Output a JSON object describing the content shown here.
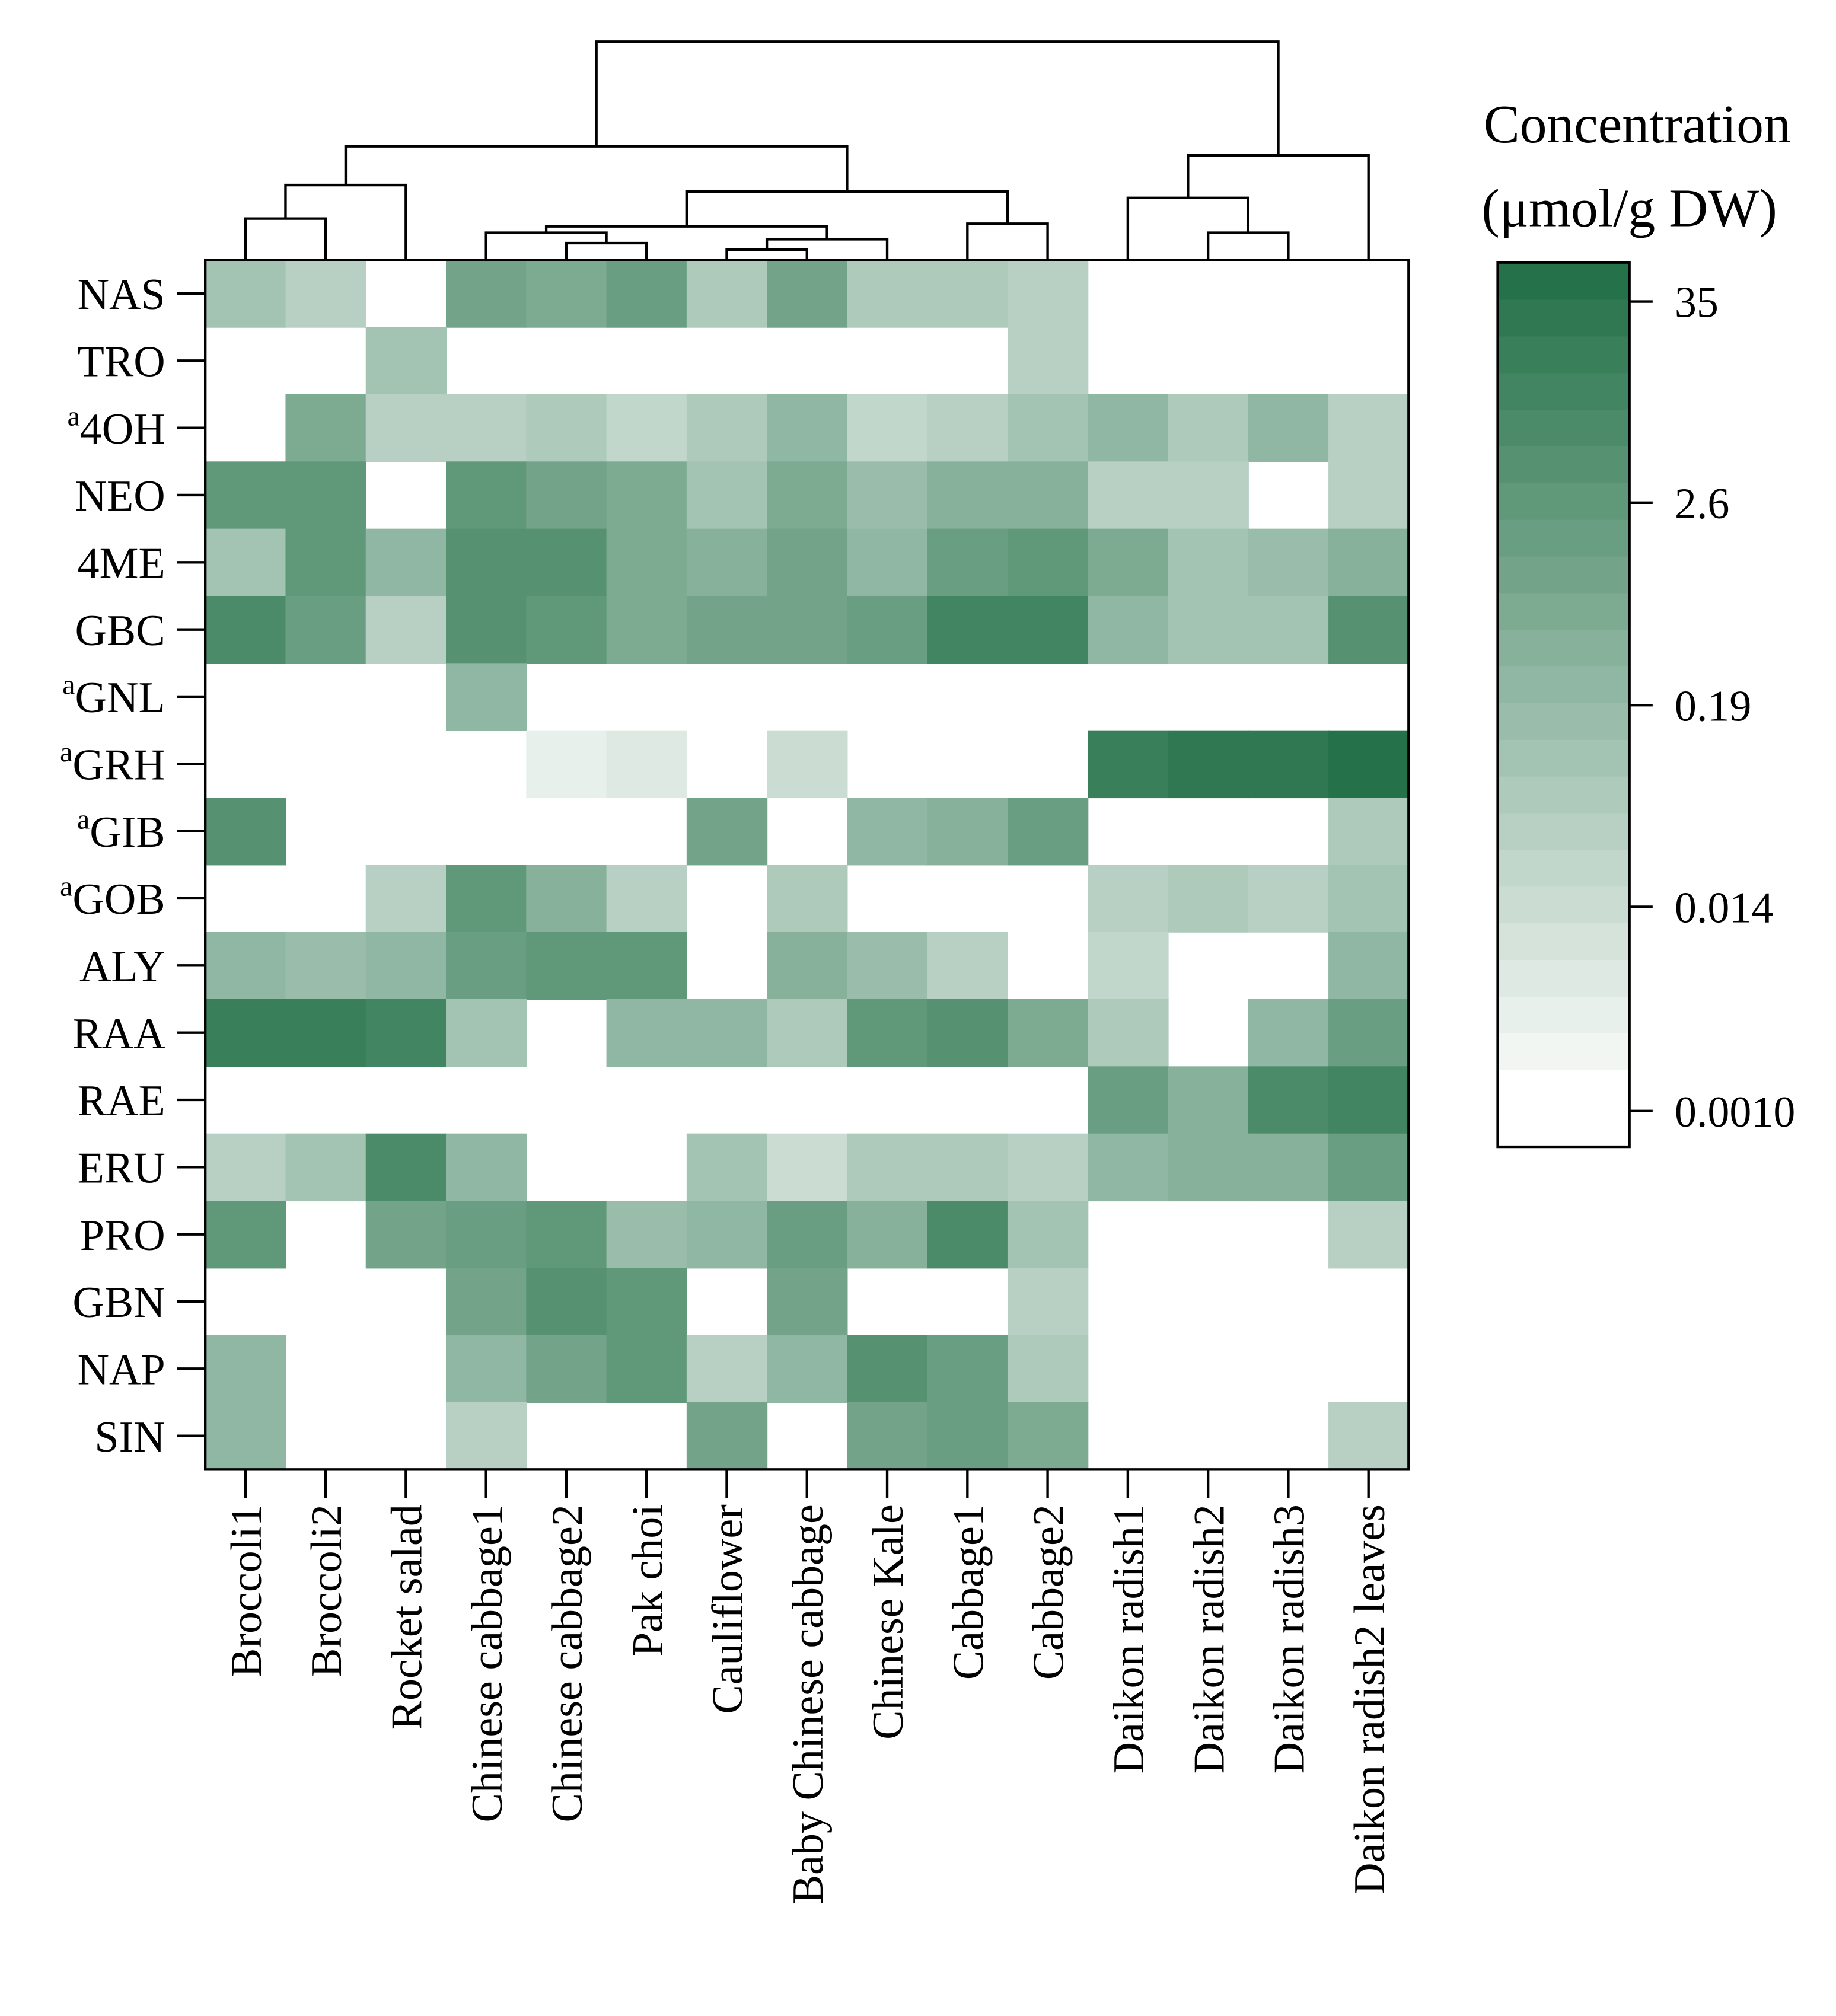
{
  "chart_data": {
    "type": "heatmap",
    "colorbar_title": [
      "Concentration",
      "(μmol/g DW)"
    ],
    "rows": [
      "NAS",
      "TRO",
      "4OH",
      "NEO",
      "4ME",
      "GBC",
      "GNL",
      "GRH",
      "GIB",
      "GOB",
      "ALY",
      "RAA",
      "RAE",
      "ERU",
      "PRO",
      "GBN",
      "NAP",
      "SIN"
    ],
    "row_notes": [
      null,
      null,
      "a",
      null,
      null,
      null,
      "a",
      "a",
      "a",
      "a",
      null,
      null,
      null,
      null,
      null,
      null,
      null,
      null
    ],
    "columns": [
      "Broccoli1",
      "Broccoli2",
      "Rocket salad",
      "Chinese cabbage1",
      "Chinese cabbage2",
      "Pak choi",
      "Cauliflower",
      "Baby Chinese cabbage",
      "Chinese Kale",
      "Cabbage1",
      "Cabbage2",
      "Daikon radish1",
      "Daikon radish2",
      "Daikon radish3",
      "Daikon radish2 leaves"
    ],
    "values": [
      [
        0.1,
        0.04,
        null,
        1,
        0.8,
        1.5,
        0.06,
        1.2,
        0.07,
        0.06,
        0.04,
        null,
        null,
        null,
        null
      ],
      [
        null,
        null,
        0.1,
        null,
        null,
        null,
        null,
        null,
        null,
        null,
        0.04,
        null,
        null,
        null,
        null
      ],
      [
        null,
        0.6,
        0.04,
        0.04,
        0.06,
        0.025,
        0.06,
        0.2,
        0.025,
        0.04,
        0.08,
        0.3,
        0.07,
        0.25,
        0.04
      ],
      [
        3,
        3,
        null,
        2.5,
        1,
        0.8,
        0.12,
        0.7,
        0.15,
        0.5,
        0.5,
        0.03,
        0.03,
        null,
        0.03
      ],
      [
        0.08,
        3,
        0.3,
        5,
        4,
        0.8,
        0.4,
        1.2,
        0.3,
        1.5,
        3,
        0.8,
        0.1,
        0.15,
        0.5
      ],
      [
        7,
        2,
        0.03,
        5,
        2.5,
        0.6,
        1.2,
        1,
        2,
        12,
        12,
        0.3,
        0.1,
        0.1,
        4
      ],
      [
        null,
        null,
        null,
        0.3,
        null,
        null,
        null,
        null,
        null,
        null,
        null,
        null,
        null,
        null,
        null
      ],
      [
        null,
        null,
        null,
        null,
        0.003,
        0.005,
        null,
        0.015,
        null,
        null,
        null,
        15,
        25,
        30,
        40
      ],
      [
        5,
        null,
        null,
        null,
        null,
        null,
        1,
        null,
        0.2,
        0.5,
        1.5,
        null,
        null,
        null,
        0.06
      ],
      [
        null,
        null,
        0.03,
        3,
        0.4,
        0.04,
        null,
        0.05,
        null,
        null,
        null,
        0.04,
        0.06,
        0.04,
        0.1
      ],
      [
        0.2,
        0.15,
        0.2,
        2,
        2.5,
        2.5,
        null,
        0.5,
        0.15,
        0.04,
        null,
        0.025,
        null,
        null,
        0.2
      ],
      [
        15,
        18,
        10,
        0.1,
        null,
        0.2,
        0.3,
        0.05,
        3,
        4,
        0.6,
        0.06,
        null,
        0.2,
        1.5
      ],
      [
        null,
        null,
        null,
        null,
        null,
        null,
        null,
        null,
        null,
        null,
        null,
        1.5,
        0.5,
        6,
        10
      ],
      [
        0.04,
        0.1,
        8,
        0.2,
        null,
        null,
        0.1,
        0.015,
        0.06,
        0.05,
        0.04,
        0.2,
        0.4,
        0.5,
        2
      ],
      [
        2.5,
        null,
        1,
        1.5,
        2.5,
        0.15,
        0.2,
        1.5,
        0.4,
        7,
        0.1,
        null,
        null,
        null,
        0.04
      ],
      [
        null,
        null,
        null,
        1,
        4,
        3,
        null,
        1,
        null,
        null,
        0.04,
        null,
        null,
        null,
        null
      ],
      [
        0.3,
        null,
        null,
        0.2,
        1,
        3,
        0.04,
        0.3,
        5,
        2,
        0.06,
        null,
        null,
        null,
        null
      ],
      [
        0.3,
        null,
        null,
        0.03,
        null,
        null,
        1,
        null,
        1,
        2,
        0.8,
        null,
        null,
        null,
        0.04
      ]
    ],
    "log_scale": true,
    "colorbar_lim": [
      0.00063,
      58
    ],
    "colorbar_ticks": [
      {
        "value": 0.001,
        "label": "0.0010"
      },
      0.014,
      0.19,
      2.6,
      35
    ],
    "color_low": "#f2f6f3",
    "color_high": "#25724a"
  }
}
